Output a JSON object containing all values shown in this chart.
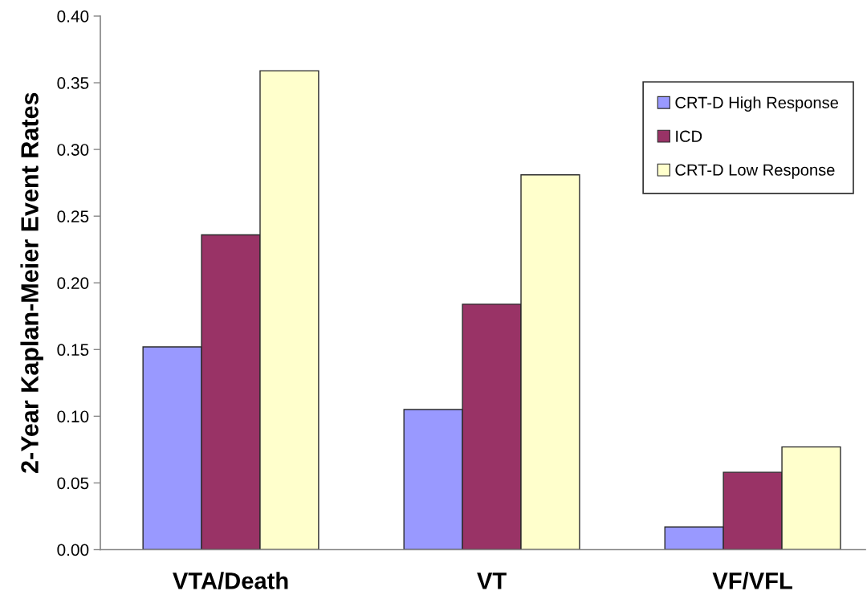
{
  "chart_data": {
    "type": "bar",
    "ylabel": "2-Year Kaplan-Meier Event Rates",
    "categories": [
      "VTA/Death",
      "VT",
      "VF/VFL"
    ],
    "series": [
      {
        "name": "CRT-D High Response",
        "color": "#9999ff",
        "values": [
          0.152,
          0.105,
          0.017
        ]
      },
      {
        "name": "ICD",
        "color": "#993366",
        "values": [
          0.236,
          0.184,
          0.058
        ]
      },
      {
        "name": "CRT-D Low Response",
        "color": "#ffffcc",
        "values": [
          0.359,
          0.281,
          0.077
        ]
      }
    ],
    "ylim": [
      0,
      0.4
    ],
    "yticks": [
      {
        "value": 0,
        "label": "0.00"
      },
      0.05,
      {
        "value": 0.1,
        "label": "0.10"
      },
      0.15,
      {
        "value": 0.2,
        "label": "0.20"
      },
      0.25,
      {
        "value": 0.3,
        "label": "0.30"
      },
      0.35,
      {
        "value": 0.4,
        "label": "0.40"
      }
    ],
    "grid": false,
    "legend": "top right"
  }
}
